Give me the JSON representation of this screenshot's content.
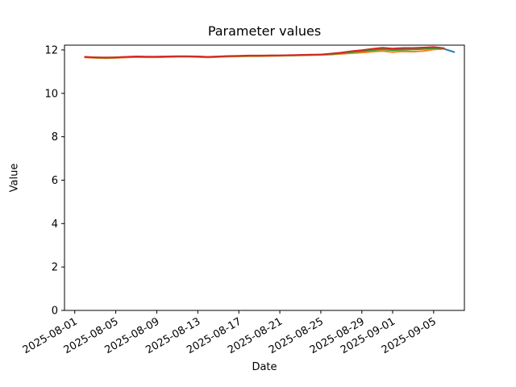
{
  "figure": {
    "title": "Parameter values",
    "xlabel": "Date",
    "ylabel": "Value"
  },
  "chart_data": {
    "type": "line",
    "title": "Parameter values",
    "xlabel": "Date",
    "ylabel": "Value",
    "grid": false,
    "legend": "none",
    "x_axis": {
      "type": "date",
      "min": "2025-07-31",
      "max": "2025-09-08",
      "tick_labels": [
        "2025-08-01",
        "2025-08-05",
        "2025-08-09",
        "2025-08-13",
        "2025-08-17",
        "2025-08-21",
        "2025-08-25",
        "2025-08-29",
        "2025-09-01",
        "2025-09-05"
      ],
      "tick_rotation_deg": 30
    },
    "y_axis": {
      "min": 0,
      "max": 12.22,
      "ticks": [
        0,
        2,
        4,
        6,
        8,
        10,
        12
      ]
    },
    "series": [
      {
        "name": "blue",
        "color": "#1f77b4",
        "dates": [
          "2025-08-02",
          "2025-08-03",
          "2025-08-04",
          "2025-08-05",
          "2025-08-06",
          "2025-08-07",
          "2025-08-08",
          "2025-08-09",
          "2025-08-10",
          "2025-08-11",
          "2025-08-12",
          "2025-08-13",
          "2025-08-14",
          "2025-08-15",
          "2025-08-16",
          "2025-08-17",
          "2025-08-18",
          "2025-08-19",
          "2025-08-20",
          "2025-08-21",
          "2025-08-22",
          "2025-08-23",
          "2025-08-24",
          "2025-08-25",
          "2025-08-26",
          "2025-08-27",
          "2025-08-28",
          "2025-08-29",
          "2025-08-30",
          "2025-08-31",
          "2025-09-01",
          "2025-09-02",
          "2025-09-03",
          "2025-09-04",
          "2025-09-05",
          "2025-09-06",
          "2025-09-07"
        ],
        "values": [
          11.67,
          11.65,
          11.64,
          11.65,
          11.67,
          11.69,
          11.68,
          11.68,
          11.69,
          11.7,
          11.7,
          11.69,
          11.67,
          11.69,
          11.71,
          11.72,
          11.73,
          11.73,
          11.74,
          11.74,
          11.75,
          11.76,
          11.77,
          11.78,
          11.8,
          11.84,
          11.89,
          11.94,
          12.0,
          12.05,
          12.02,
          12.05,
          12.06,
          12.08,
          12.1,
          12.05,
          11.9
        ]
      },
      {
        "name": "orange",
        "color": "#ff7f0e",
        "dates": [
          "2025-08-02",
          "2025-08-03",
          "2025-08-04",
          "2025-08-05",
          "2025-08-06",
          "2025-08-07",
          "2025-08-08",
          "2025-08-09",
          "2025-08-10",
          "2025-08-11",
          "2025-08-12",
          "2025-08-13",
          "2025-08-14",
          "2025-08-15",
          "2025-08-16",
          "2025-08-17",
          "2025-08-18",
          "2025-08-19",
          "2025-08-20",
          "2025-08-21",
          "2025-08-22",
          "2025-08-23",
          "2025-08-24",
          "2025-08-25",
          "2025-08-26",
          "2025-08-27",
          "2025-08-28",
          "2025-08-29",
          "2025-08-30",
          "2025-08-31",
          "2025-09-01",
          "2025-09-02",
          "2025-09-03",
          "2025-09-04",
          "2025-09-05",
          "2025-09-06"
        ],
        "values": [
          11.65,
          11.63,
          11.62,
          11.63,
          11.65,
          11.67,
          11.66,
          11.66,
          11.67,
          11.68,
          11.68,
          11.67,
          11.65,
          11.67,
          11.69,
          11.7,
          11.71,
          11.71,
          11.72,
          11.73,
          11.74,
          11.75,
          11.76,
          11.77,
          11.78,
          11.82,
          11.85,
          11.88,
          11.92,
          11.95,
          11.9,
          11.93,
          11.92,
          11.95,
          12.02,
          12.05
        ]
      },
      {
        "name": "green",
        "color": "#2ca02c",
        "dates": [
          "2025-08-02",
          "2025-08-03",
          "2025-08-04",
          "2025-08-05",
          "2025-08-06",
          "2025-08-07",
          "2025-08-08",
          "2025-08-09",
          "2025-08-10",
          "2025-08-11",
          "2025-08-12",
          "2025-08-13",
          "2025-08-14",
          "2025-08-15",
          "2025-08-16",
          "2025-08-17",
          "2025-08-18",
          "2025-08-19",
          "2025-08-20",
          "2025-08-21",
          "2025-08-22",
          "2025-08-23",
          "2025-08-24",
          "2025-08-25",
          "2025-08-26",
          "2025-08-27",
          "2025-08-28",
          "2025-08-29",
          "2025-08-30",
          "2025-08-31",
          "2025-09-01",
          "2025-09-02",
          "2025-09-03",
          "2025-09-04",
          "2025-09-05",
          "2025-09-06"
        ],
        "values": [
          11.67,
          11.65,
          11.64,
          11.65,
          11.67,
          11.69,
          11.68,
          11.68,
          11.69,
          11.7,
          11.7,
          11.69,
          11.67,
          11.69,
          11.71,
          11.72,
          11.73,
          11.73,
          11.74,
          11.74,
          11.75,
          11.76,
          11.77,
          11.78,
          11.81,
          11.85,
          11.9,
          11.94,
          11.99,
          12.03,
          11.99,
          12.01,
          12.02,
          12.04,
          12.08,
          12.07
        ]
      },
      {
        "name": "red",
        "color": "#d62728",
        "dates": [
          "2025-08-02",
          "2025-08-03",
          "2025-08-04",
          "2025-08-05",
          "2025-08-06",
          "2025-08-07",
          "2025-08-08",
          "2025-08-09",
          "2025-08-10",
          "2025-08-11",
          "2025-08-12",
          "2025-08-13",
          "2025-08-14",
          "2025-08-15",
          "2025-08-16",
          "2025-08-17",
          "2025-08-18",
          "2025-08-19",
          "2025-08-20",
          "2025-08-21",
          "2025-08-22",
          "2025-08-23",
          "2025-08-24",
          "2025-08-25",
          "2025-08-26",
          "2025-08-27",
          "2025-08-28",
          "2025-08-29",
          "2025-08-30",
          "2025-08-31",
          "2025-09-01",
          "2025-09-02",
          "2025-09-03",
          "2025-09-04",
          "2025-09-05",
          "2025-09-06"
        ],
        "values": [
          11.68,
          11.66,
          11.65,
          11.66,
          11.68,
          11.7,
          11.69,
          11.69,
          11.7,
          11.71,
          11.71,
          11.7,
          11.68,
          11.7,
          11.72,
          11.73,
          11.74,
          11.74,
          11.75,
          11.75,
          11.76,
          11.77,
          11.78,
          11.79,
          11.83,
          11.88,
          11.94,
          11.99,
          12.05,
          12.1,
          12.06,
          12.09,
          12.09,
          12.11,
          12.13,
          12.08
        ]
      }
    ]
  }
}
